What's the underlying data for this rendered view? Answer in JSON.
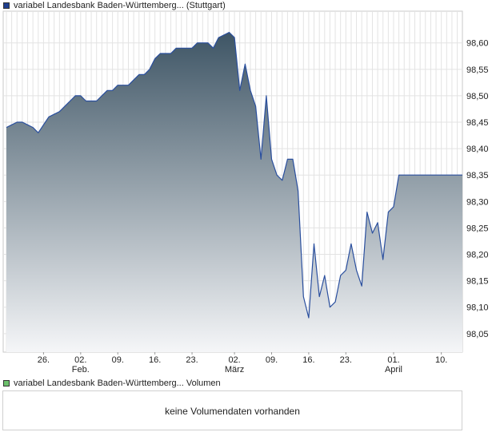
{
  "legend": {
    "price_label": "variabel Landesbank Baden-Württemberg... (Stuttgart)",
    "price_color": "#1f3f8f",
    "volume_label": "variabel Landesbank Baden-Württemberg... Volumen",
    "volume_color": "#6cc06c"
  },
  "volume": {
    "message": "keine Volumendaten vorhanden"
  },
  "chart_data": {
    "type": "area",
    "title": "",
    "xlabel": "",
    "ylabel": "",
    "ylim": [
      98.015,
      98.66
    ],
    "y_ticks": [
      "98,05",
      "98,10",
      "98,15",
      "98,20",
      "98,25",
      "98,30",
      "98,35",
      "98,40",
      "98,45",
      "98,50",
      "98,55",
      "98,60"
    ],
    "x_tick_labels": [
      "26.",
      "02.",
      "09.",
      "16.",
      "23.",
      "02.",
      "09.",
      "16.",
      "23.",
      "01.",
      "10."
    ],
    "x_month_labels": [
      "Feb.",
      "März",
      "April"
    ],
    "grid": true,
    "legend_placement": "top-left",
    "line_color": "#2a4f9e",
    "fill_top_color": "#3e5565",
    "fill_bottom_color": "#f5f6f8",
    "series": [
      {
        "name": "variabel Landesbank Baden-Württemberg... (Stuttgart)",
        "x": [
          "Jan 19",
          "Jan 20",
          "Jan 21",
          "Jan 22",
          "Jan 23",
          "Jan 24",
          "Jan 25",
          "Jan 26",
          "Jan 27",
          "Jan 28",
          "Jan 29",
          "Jan 30",
          "Jan 31",
          "Feb 01",
          "Feb 02",
          "Feb 03",
          "Feb 04",
          "Feb 05",
          "Feb 06",
          "Feb 07",
          "Feb 08",
          "Feb 09",
          "Feb 10",
          "Feb 11",
          "Feb 12",
          "Feb 13",
          "Feb 14",
          "Feb 15",
          "Feb 16",
          "Feb 17",
          "Feb 18",
          "Feb 19",
          "Feb 20",
          "Feb 21",
          "Feb 22",
          "Feb 23",
          "Feb 24",
          "Feb 25",
          "Feb 26",
          "Feb 27",
          "Feb 28",
          "Mar 01",
          "Mar 02",
          "Mar 03",
          "Mar 04",
          "Mar 05",
          "Mar 06",
          "Mar 07",
          "Mar 08",
          "Mar 09",
          "Mar 10",
          "Mar 11",
          "Mar 12",
          "Mar 13",
          "Mar 14",
          "Mar 15",
          "Mar 16",
          "Mar 17",
          "Mar 18",
          "Mar 19",
          "Mar 20",
          "Mar 21",
          "Mar 22",
          "Mar 23",
          "Mar 24",
          "Mar 25",
          "Mar 26",
          "Mar 27",
          "Mar 28",
          "Mar 29",
          "Mar 30",
          "Mar 31",
          "Apr 01",
          "Apr 02",
          "Apr 03",
          "Apr 04",
          "Apr 05",
          "Apr 06",
          "Apr 07",
          "Apr 08",
          "Apr 09",
          "Apr 10",
          "Apr 11",
          "Apr 12",
          "Apr 13",
          "Apr 14"
        ],
        "values": [
          98.44,
          98.445,
          98.45,
          98.45,
          98.445,
          98.44,
          98.43,
          98.445,
          98.46,
          98.465,
          98.47,
          98.48,
          98.49,
          98.5,
          98.5,
          98.49,
          98.49,
          98.49,
          98.5,
          98.51,
          98.51,
          98.52,
          98.52,
          98.52,
          98.53,
          98.54,
          98.54,
          98.55,
          98.57,
          98.58,
          98.58,
          98.58,
          98.59,
          98.59,
          98.59,
          98.59,
          98.6,
          98.6,
          98.6,
          98.59,
          98.61,
          98.62,
          98.61,
          98.51,
          98.56,
          98.51,
          98.48,
          98.38,
          98.5,
          98.38,
          98.35,
          98.34,
          98.38,
          98.38,
          98.32,
          98.12,
          98.08,
          98.22,
          98.12,
          98.16,
          98.1,
          98.11,
          98.16,
          98.17,
          98.22,
          98.17,
          98.14,
          98.28,
          98.24,
          98.26,
          98.19,
          98.28,
          98.29,
          98.35,
          98.35,
          98.35,
          98.35,
          98.35,
          98.35,
          98.35,
          98.35,
          98.35,
          98.35,
          98.35,
          98.35,
          98.35
        ]
      }
    ]
  }
}
